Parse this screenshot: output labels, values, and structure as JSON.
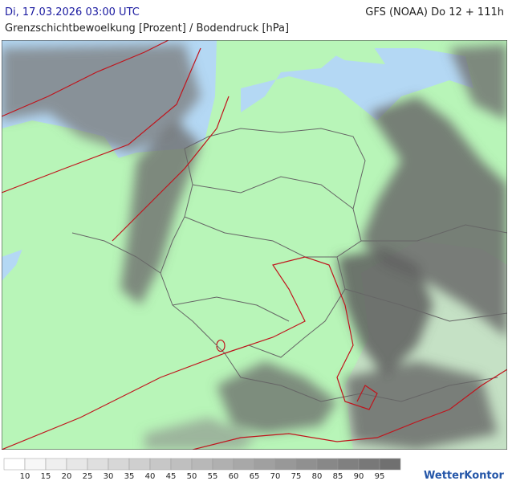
{
  "header": {
    "datetime": "Di, 17.03.2026 03:00 UTC",
    "model": "GFS (NOAA) Do 12 + 111h",
    "subtitle": "Grenzschichtbewoelkung [Prozent] / Bodendruck [hPa]"
  },
  "legend": {
    "ticks": [
      10,
      15,
      20,
      25,
      30,
      35,
      40,
      45,
      50,
      55,
      60,
      65,
      70,
      75,
      80,
      85,
      90,
      95
    ]
  },
  "brand": "WetterKontor"
}
